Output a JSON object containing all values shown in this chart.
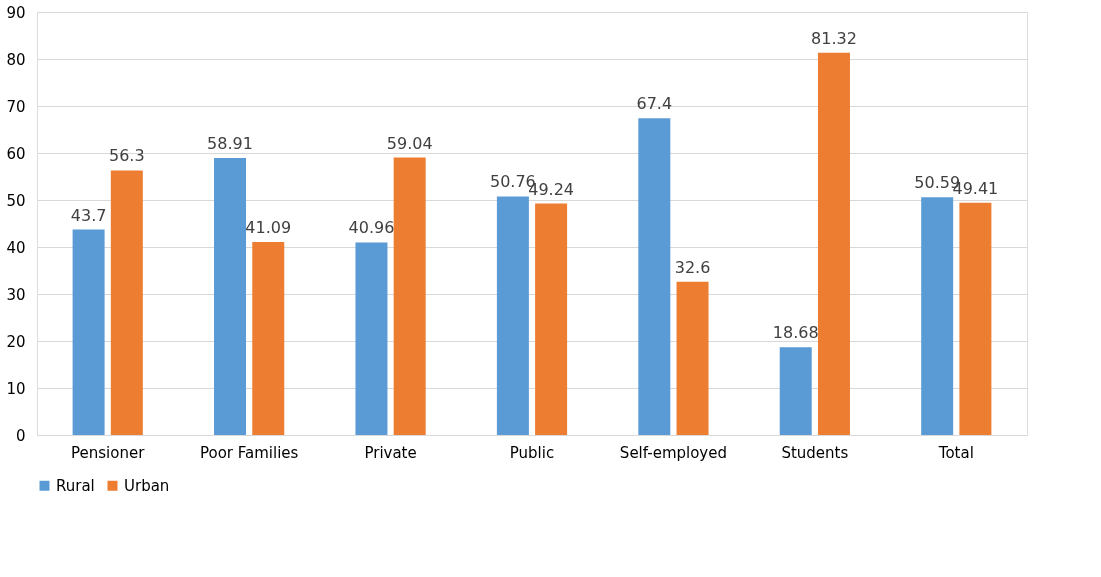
{
  "chart_data": {
    "type": "bar",
    "categories": [
      "Pensioner",
      "Poor Families",
      "Private",
      "Public",
      "Self-employed",
      "Students",
      "Total"
    ],
    "series": [
      {
        "name": "Rural",
        "color": "#5b9bd5",
        "values": [
          43.7,
          58.91,
          40.96,
          50.76,
          67.4,
          18.68,
          50.59
        ]
      },
      {
        "name": "Urban",
        "color": "#ed7d31",
        "values": [
          56.3,
          41.09,
          59.04,
          49.24,
          32.6,
          81.32,
          49.41
        ]
      }
    ],
    "ylim": [
      0,
      90
    ],
    "yticks": [
      0,
      10,
      20,
      30,
      40,
      50,
      60,
      70,
      80,
      90
    ],
    "grid": "y",
    "legend": "bottom",
    "data_labels": true
  }
}
